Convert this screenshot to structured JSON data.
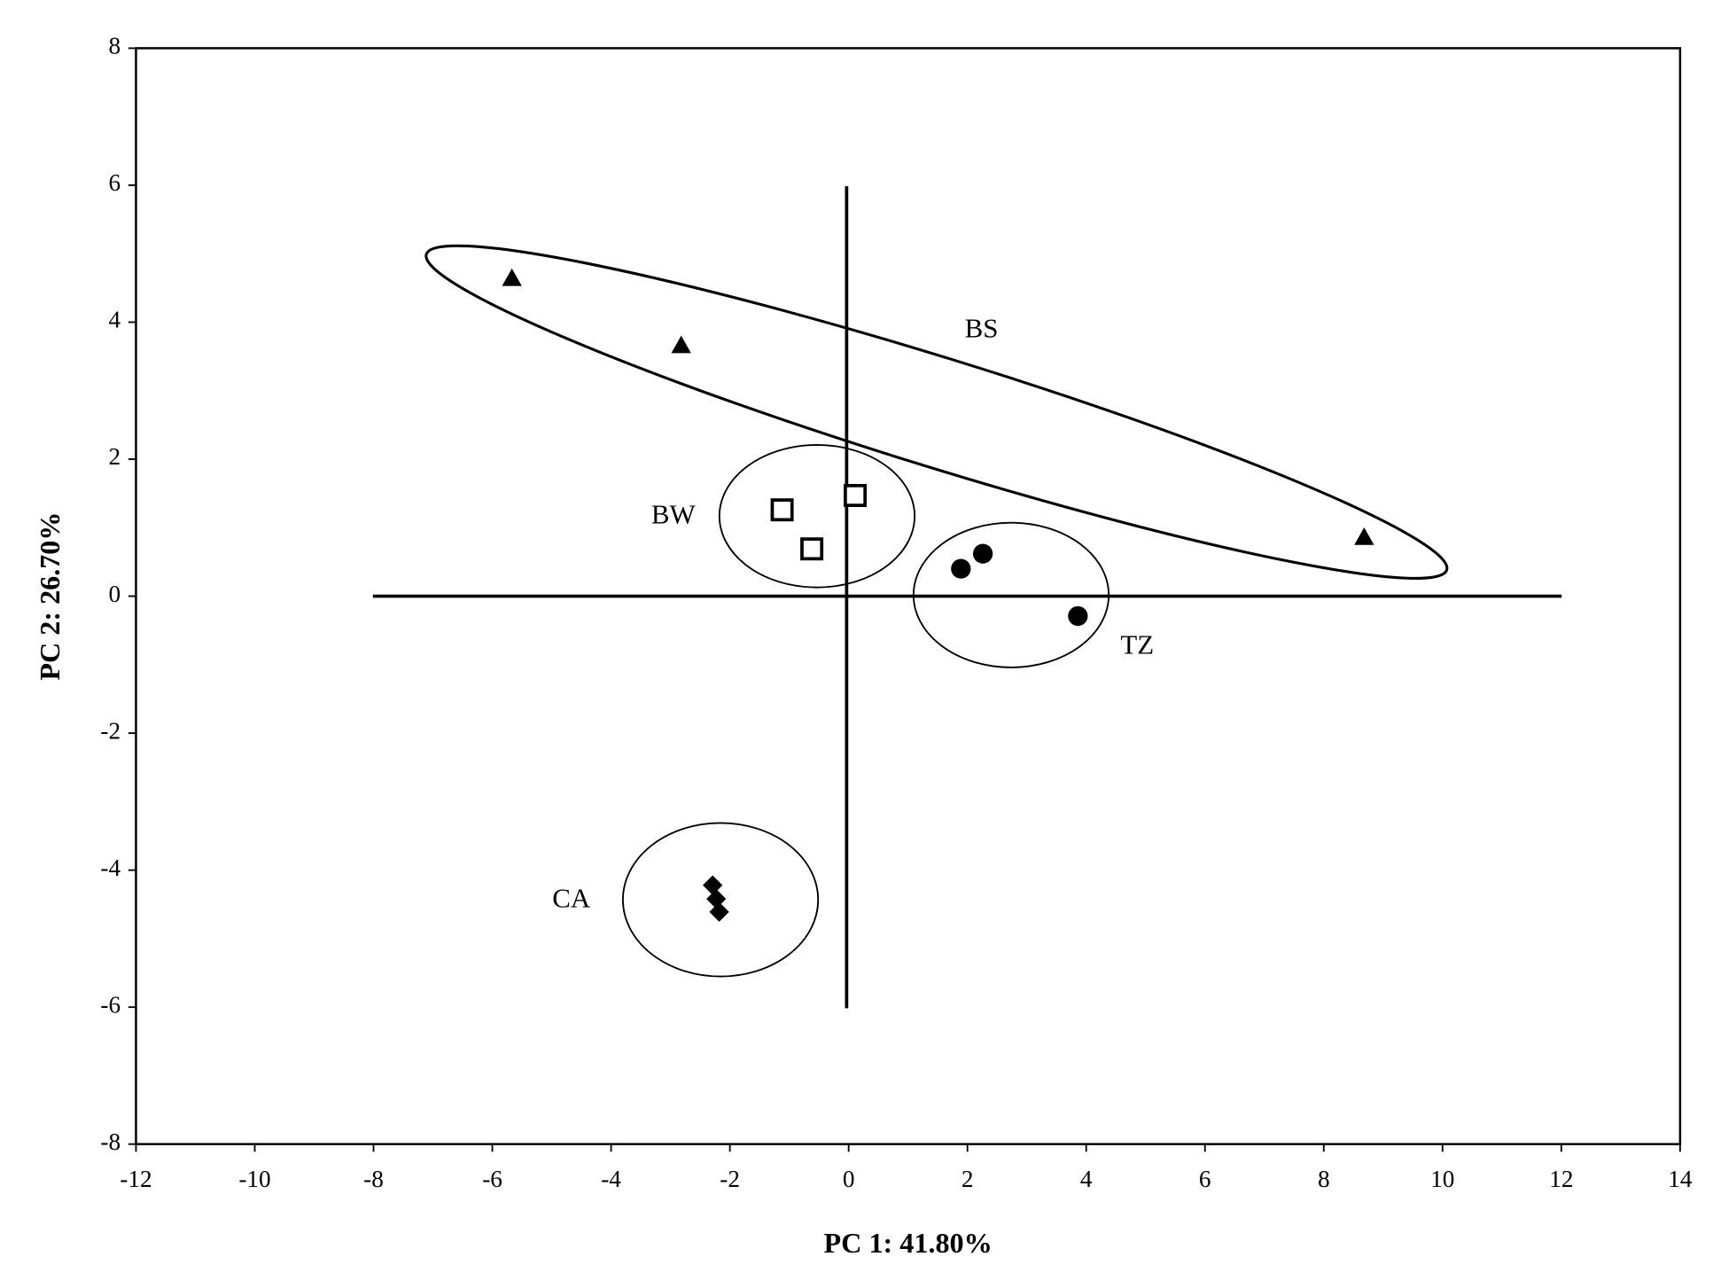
{
  "chart_data": {
    "type": "scatter",
    "xlabel": "PC 1: 41.80%",
    "ylabel": "PC 2: 26.70%",
    "xlim": [
      -12,
      14
    ],
    "ylim": [
      -8,
      8
    ],
    "xticks": [
      -12,
      -10,
      -8,
      -6,
      -4,
      -2,
      0,
      2,
      4,
      6,
      8,
      10,
      12,
      14
    ],
    "yticks": [
      -8,
      -6,
      -4,
      -2,
      0,
      2,
      4,
      6,
      8
    ],
    "grid": false,
    "series": [
      {
        "name": "BS",
        "marker": "triangle",
        "color": "#000000",
        "x": [
          -5.67,
          -2.82,
          8.68
        ],
        "values": [
          4.64,
          3.66,
          0.86
        ]
      },
      {
        "name": "BW",
        "marker": "open-square",
        "color": "#000000",
        "x": [
          -1.12,
          -0.62,
          0.11
        ],
        "values": [
          1.26,
          0.69,
          1.47
        ]
      },
      {
        "name": "TZ",
        "marker": "circle",
        "color": "#000000",
        "x": [
          1.89,
          2.26,
          3.86
        ],
        "values": [
          0.4,
          0.62,
          -0.29
        ]
      },
      {
        "name": "CA",
        "marker": "diamond",
        "color": "#000000",
        "x": [
          -2.29,
          -2.23,
          -2.18
        ],
        "values": [
          -4.22,
          -4.42,
          -4.61
        ]
      }
    ]
  }
}
